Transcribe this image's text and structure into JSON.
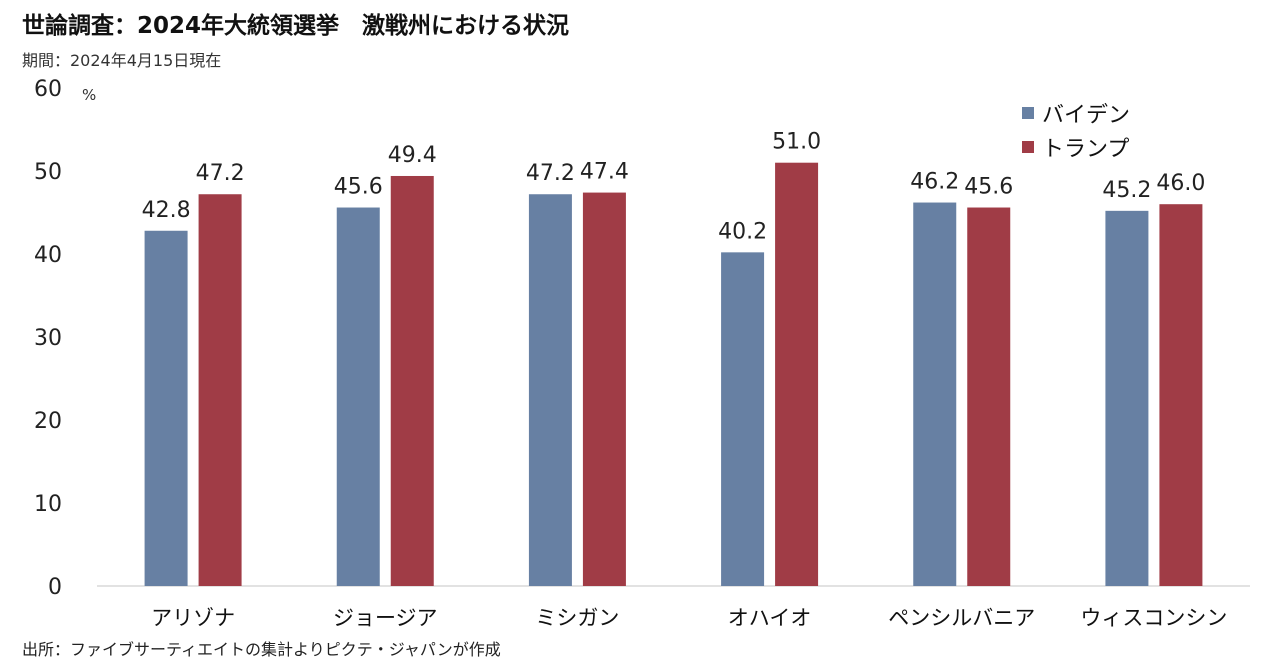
{
  "header": {
    "title": "世論調査：2024年大統領選挙　激戦州における状況",
    "subtitle": "期間：2024年4月15日現在"
  },
  "footer": {
    "source": "出所：ファイブサーティエイトの集計よりピクテ・ジャパンが作成"
  },
  "colors": {
    "biden": "#6780a3",
    "trump": "#a03c46",
    "axis": "#d9d9d9"
  },
  "chart_data": {
    "type": "bar",
    "title": "世論調査：2024年大統領選挙　激戦州における状況",
    "subtitle": "期間：2024年4月15日現在",
    "ylabel": "%",
    "ylim": [
      0,
      60
    ],
    "yticks": [
      "0",
      "10",
      "20",
      "30",
      "40",
      "50",
      "60"
    ],
    "grid": false,
    "legend_position": "top-right",
    "categories": [
      "アリゾナ",
      "ジョージア",
      "ミシガン",
      "オハイオ",
      "ペンシルバニア",
      "ウィスコンシン"
    ],
    "series": [
      {
        "name": "バイデン",
        "values": [
          42.8,
          45.6,
          47.2,
          40.2,
          46.2,
          45.2
        ],
        "labels": [
          "42.8",
          "45.6",
          "47.2",
          "40.2",
          "46.2",
          "45.2"
        ]
      },
      {
        "name": "トランプ",
        "values": [
          47.2,
          49.4,
          47.4,
          51.0,
          45.6,
          46.0
        ],
        "labels": [
          "47.2",
          "49.4",
          "47.4",
          "51.0",
          "45.6",
          "46.0"
        ]
      }
    ]
  }
}
